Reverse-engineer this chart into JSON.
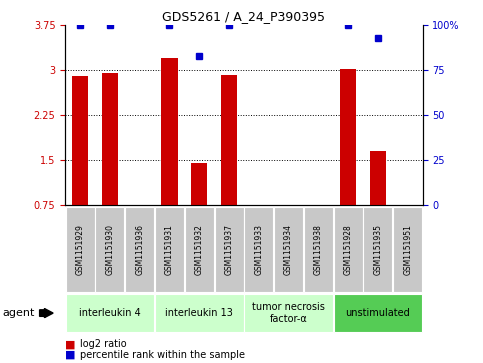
{
  "title": "GDS5261 / A_24_P390395",
  "samples": [
    "GSM1151929",
    "GSM1151930",
    "GSM1151936",
    "GSM1151931",
    "GSM1151932",
    "GSM1151937",
    "GSM1151933",
    "GSM1151934",
    "GSM1151938",
    "GSM1151928",
    "GSM1151935",
    "GSM1151951"
  ],
  "log2_ratio": [
    2.9,
    2.95,
    0.0,
    3.2,
    1.45,
    2.93,
    0.0,
    0.0,
    0.0,
    3.02,
    1.65,
    0.0
  ],
  "percentile": [
    100,
    100,
    0,
    100,
    83,
    100,
    0,
    0,
    0,
    100,
    93,
    0
  ],
  "groups": [
    {
      "label": "interleukin 4",
      "start": 0,
      "end": 2,
      "color": "#ccffcc"
    },
    {
      "label": "interleukin 13",
      "start": 3,
      "end": 5,
      "color": "#ccffcc"
    },
    {
      "label": "tumor necrosis\nfactor-α",
      "start": 6,
      "end": 8,
      "color": "#ccffcc"
    },
    {
      "label": "unstimulated",
      "start": 9,
      "end": 11,
      "color": "#55cc55"
    }
  ],
  "bar_color": "#cc0000",
  "dot_color": "#0000cc",
  "ylim_left": [
    0.75,
    3.75
  ],
  "yticks_left": [
    0.75,
    1.5,
    2.25,
    3.0,
    3.75
  ],
  "ytick_labels_left": [
    "0.75",
    "1.5",
    "2.25",
    "3",
    "3.75"
  ],
  "ylim_right": [
    0,
    100
  ],
  "yticks_right": [
    0,
    25,
    50,
    75,
    100
  ],
  "ytick_labels_right": [
    "0",
    "25",
    "50",
    "75",
    "100%"
  ],
  "ylabel_left_color": "#cc0000",
  "ylabel_right_color": "#0000cc",
  "bg_color": "#c8c8c8",
  "legend_red": "log2 ratio",
  "legend_blue": "percentile rank within the sample",
  "agent_label": "agent"
}
